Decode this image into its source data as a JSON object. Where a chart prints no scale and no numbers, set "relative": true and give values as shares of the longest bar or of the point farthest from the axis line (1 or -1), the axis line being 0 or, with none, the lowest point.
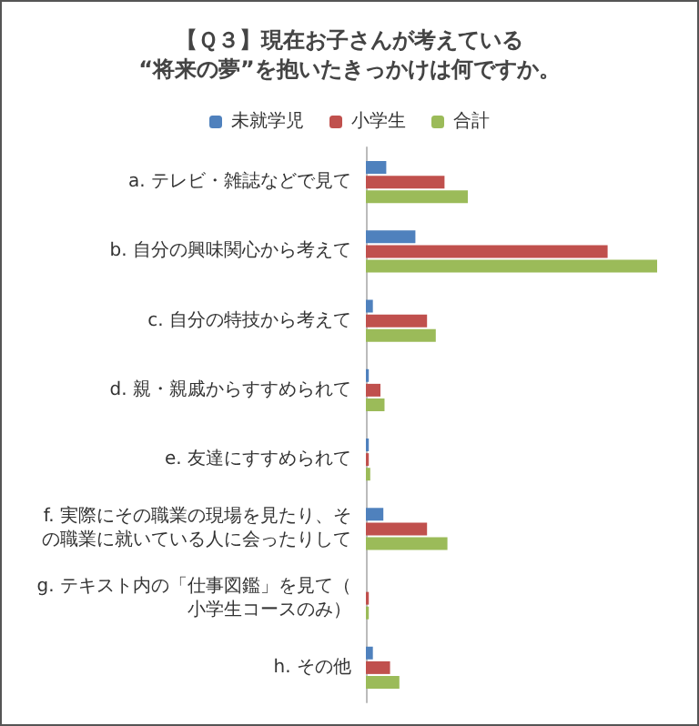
{
  "chart_data": {
    "type": "bar",
    "orientation": "horizontal",
    "relative": true,
    "title": "【Ｑ３】現在お子さんが考えている\n“将来の夢”を抱いたきっかけは何ですか。",
    "legend": "top",
    "categories": [
      "a. テレビ・雑誌などで見て",
      "b. 自分の興味関心から考えて",
      "c. 自分の特技から考えて",
      "d. 親・親戚からすすめられて",
      "e. 友達にすすめられて",
      "f. 実際にその職業の現場を見たり、その職業に就いている人に会ったりして",
      "g. テキスト内の「仕事図鑑」を見て（小学生コースのみ）",
      "h. その他"
    ],
    "series": [
      {
        "name": "未就学児",
        "color": "#4f81bd",
        "values": [
          0.07,
          0.17,
          0.024,
          0.01,
          0.01,
          0.06,
          0,
          0.024
        ]
      },
      {
        "name": "小学生",
        "color": "#c0504d",
        "values": [
          0.27,
          0.83,
          0.21,
          0.05,
          0.01,
          0.21,
          0.01,
          0.083
        ]
      },
      {
        "name": "合計",
        "color": "#9bbb59",
        "values": [
          0.35,
          1,
          0.24,
          0.064,
          0.015,
          0.28,
          0.01,
          0.115
        ]
      }
    ]
  }
}
